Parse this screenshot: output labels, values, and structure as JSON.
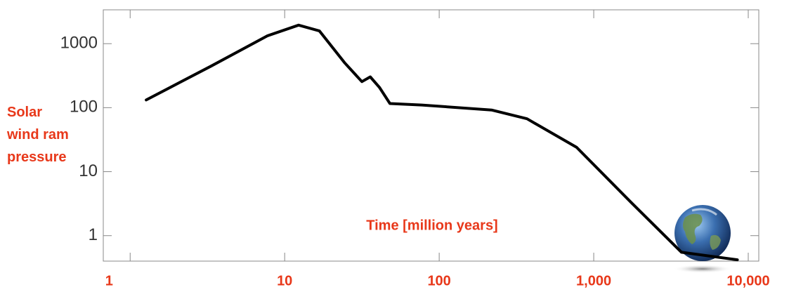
{
  "chart_data": {
    "type": "line",
    "xlabel": "Time [million years]",
    "ylabel": "Solar wind ram pressure",
    "xlog": true,
    "ylog": true,
    "xlim": [
      0.67,
      11700
    ],
    "ylim": [
      0.4,
      3380
    ],
    "xticks": [
      1,
      10,
      100,
      {
        "value": 1000,
        "label": "1,000"
      },
      {
        "value": 10000,
        "label": "10,000"
      }
    ],
    "yticks": [
      1,
      10,
      100,
      1000
    ],
    "series": [
      {
        "color": "#000000",
        "x": [
          1.27,
          3.33,
          7.7,
          12.3,
          16.8,
          24.4,
          31.6,
          35.8,
          41,
          48,
          77,
          218,
          370,
          775,
          1770,
          3700,
          8500
        ],
        "values": [
          132,
          445,
          1320,
          1950,
          1580,
          505,
          255,
          303,
          208,
          116,
          110,
          92,
          67,
          24,
          3.2,
          0.55,
          0.42
        ]
      }
    ]
  }
}
